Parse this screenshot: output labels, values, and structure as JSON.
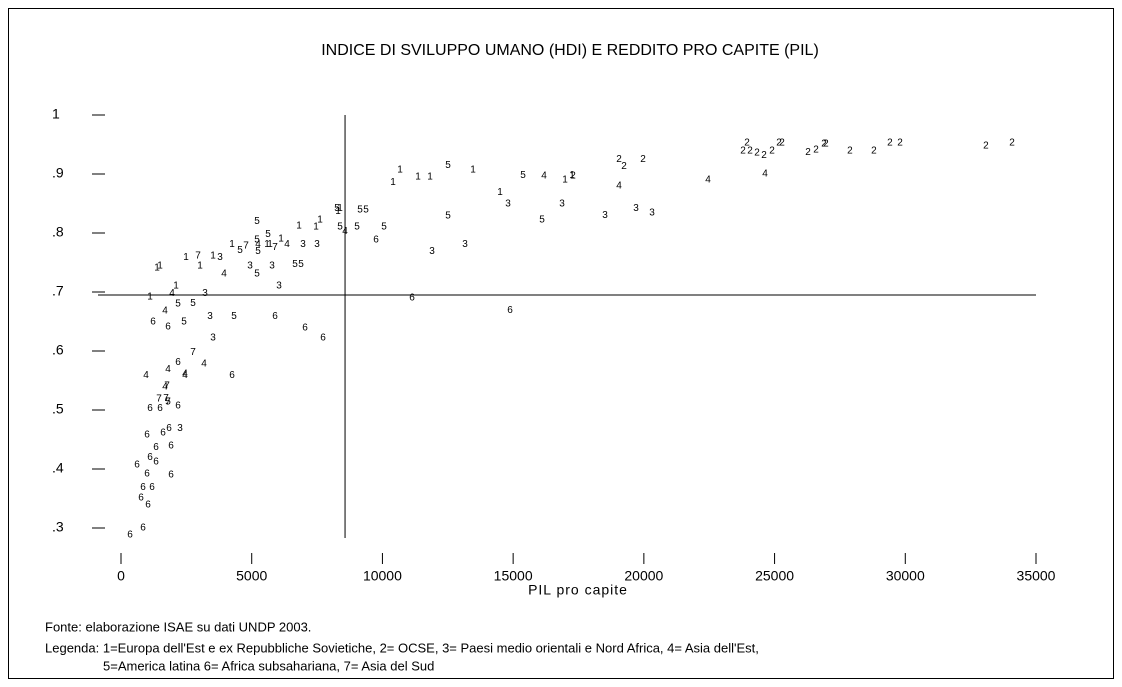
{
  "chart_data": {
    "type": "scatter",
    "title": "INDICE DI SVILUPPO UMANO (HDI) E REDDITO PRO CAPITE (PIL)",
    "x_label": "PIL pro capite",
    "source": "Fonte: elaborazione ISAE su dati UNDP 2003.",
    "legend_text": [
      "Legenda: 1=Europa dell'Est e ex Repubbliche Sovietiche, 2= OCSE, 3= Paesi medio orientali e Nord Africa, 4= Asia dell'Est,",
      "5=America latina  6= Africa subsahariana, 7= Asia del Sud"
    ],
    "xlim": [
      0,
      35000
    ],
    "ylim": [
      0.3,
      1
    ],
    "xticks": [
      0,
      5000,
      10000,
      15000,
      20000,
      25000,
      30000,
      35000
    ],
    "yticks": [
      {
        "value": 0.3,
        "label": ".3"
      },
      {
        "value": 0.4,
        "label": ".4"
      },
      {
        "value": 0.5,
        "label": ".5"
      },
      {
        "value": 0.6,
        "label": ".6"
      },
      {
        "value": 0.7,
        "label": ".7"
      },
      {
        "value": 0.8,
        "label": ".8"
      },
      {
        "value": 0.9,
        "label": ".9"
      },
      1
    ],
    "reference_x": 8570,
    "reference_y": 0.695,
    "color": "#000000",
    "series": [
      {
        "name": "1",
        "x": [
          17251,
          16983,
          14497,
          13464,
          11819,
          11360,
          10672,
          10404,
          8377,
          7612,
          7459,
          6809,
          6120,
          4246,
          3519,
          3022,
          2486,
          1492,
          1377,
          2104,
          1109,
          5699,
          5584,
          8300
        ],
        "values": [
          0.898,
          0.89,
          0.869,
          0.907,
          0.895,
          0.895,
          0.907,
          0.886,
          0.842,
          0.822,
          0.81,
          0.812,
          0.79,
          0.781,
          0.761,
          0.744,
          0.759,
          0.744,
          0.741,
          0.71,
          0.692,
          0.781,
          0.781,
          0.837
        ]
      },
      {
        "name": "2",
        "x": [
          23945,
          23792,
          24059,
          24327,
          24595,
          24901,
          25169,
          25283,
          26278,
          26584,
          26890,
          26966,
          27884,
          28802,
          29414,
          29797,
          33086,
          34081,
          19049,
          19240,
          19967,
          17289
        ],
        "values": [
          0.953,
          0.939,
          0.939,
          0.936,
          0.932,
          0.939,
          0.953,
          0.953,
          0.937,
          0.941,
          0.951,
          0.951,
          0.939,
          0.939,
          0.953,
          0.953,
          0.948,
          0.953,
          0.925,
          0.913,
          0.925,
          0.897
        ]
      },
      {
        "name": "3",
        "x": [
          20311,
          19699,
          18513,
          16868,
          14803,
          13158,
          11896,
          6962,
          7497,
          5776,
          6044,
          3213,
          3404,
          3519,
          2257,
          3787,
          4934
        ],
        "values": [
          0.834,
          0.842,
          0.83,
          0.849,
          0.849,
          0.781,
          0.769,
          0.781,
          0.781,
          0.744,
          0.71,
          0.698,
          0.659,
          0.622,
          0.469,
          0.759,
          0.744
        ]
      },
      {
        "name": "4",
        "x": [
          24633,
          22453,
          19049,
          16180,
          8568,
          6350,
          5240,
          3940,
          1951,
          2448,
          1798,
          1683,
          956,
          1683,
          2448,
          3175
        ],
        "values": [
          0.9,
          0.89,
          0.88,
          0.897,
          0.803,
          0.781,
          0.781,
          0.731,
          0.698,
          0.559,
          0.569,
          0.668,
          0.559,
          0.539,
          0.561,
          0.578
        ]
      },
      {
        "name": "5",
        "x": [
          15377,
          12508,
          12508,
          10060,
          9027,
          8377,
          8262,
          9142,
          9371,
          5202,
          5622,
          5202,
          4552,
          5240,
          5202,
          6656,
          6885,
          2754,
          2180,
          4322,
          2410,
          16103,
          1798
        ],
        "values": [
          0.898,
          0.915,
          0.829,
          0.81,
          0.81,
          0.81,
          0.842,
          0.839,
          0.839,
          0.82,
          0.798,
          0.788,
          0.771,
          0.769,
          0.731,
          0.747,
          0.747,
          0.681,
          0.68,
          0.659,
          0.649,
          0.822,
          0.514
        ]
      },
      {
        "name": "6",
        "x": [
          14879,
          11131,
          9754,
          7727,
          7038,
          5890,
          4246,
          2180,
          1798,
          1224,
          1109,
          1492,
          2180,
          1836,
          1913,
          1339,
          1109,
          612,
          1339,
          995,
          1913,
          842,
          1186,
          765,
          1033,
          842,
          344,
          1607,
          995
        ],
        "values": [
          0.669,
          0.69,
          0.788,
          0.622,
          0.639,
          0.659,
          0.559,
          0.581,
          0.641,
          0.649,
          0.503,
          0.503,
          0.507,
          0.469,
          0.439,
          0.437,
          0.42,
          0.407,
          0.412,
          0.392,
          0.39,
          0.369,
          0.369,
          0.351,
          0.339,
          0.3,
          0.288,
          0.461,
          0.458
        ]
      },
      {
        "name": "7",
        "x": [
          2754,
          1454,
          1798,
          1721,
          2945,
          4781,
          5890,
          1759
        ],
        "values": [
          0.598,
          0.519,
          0.514,
          0.52,
          0.761,
          0.778,
          0.776,
          0.541
        ]
      }
    ]
  }
}
